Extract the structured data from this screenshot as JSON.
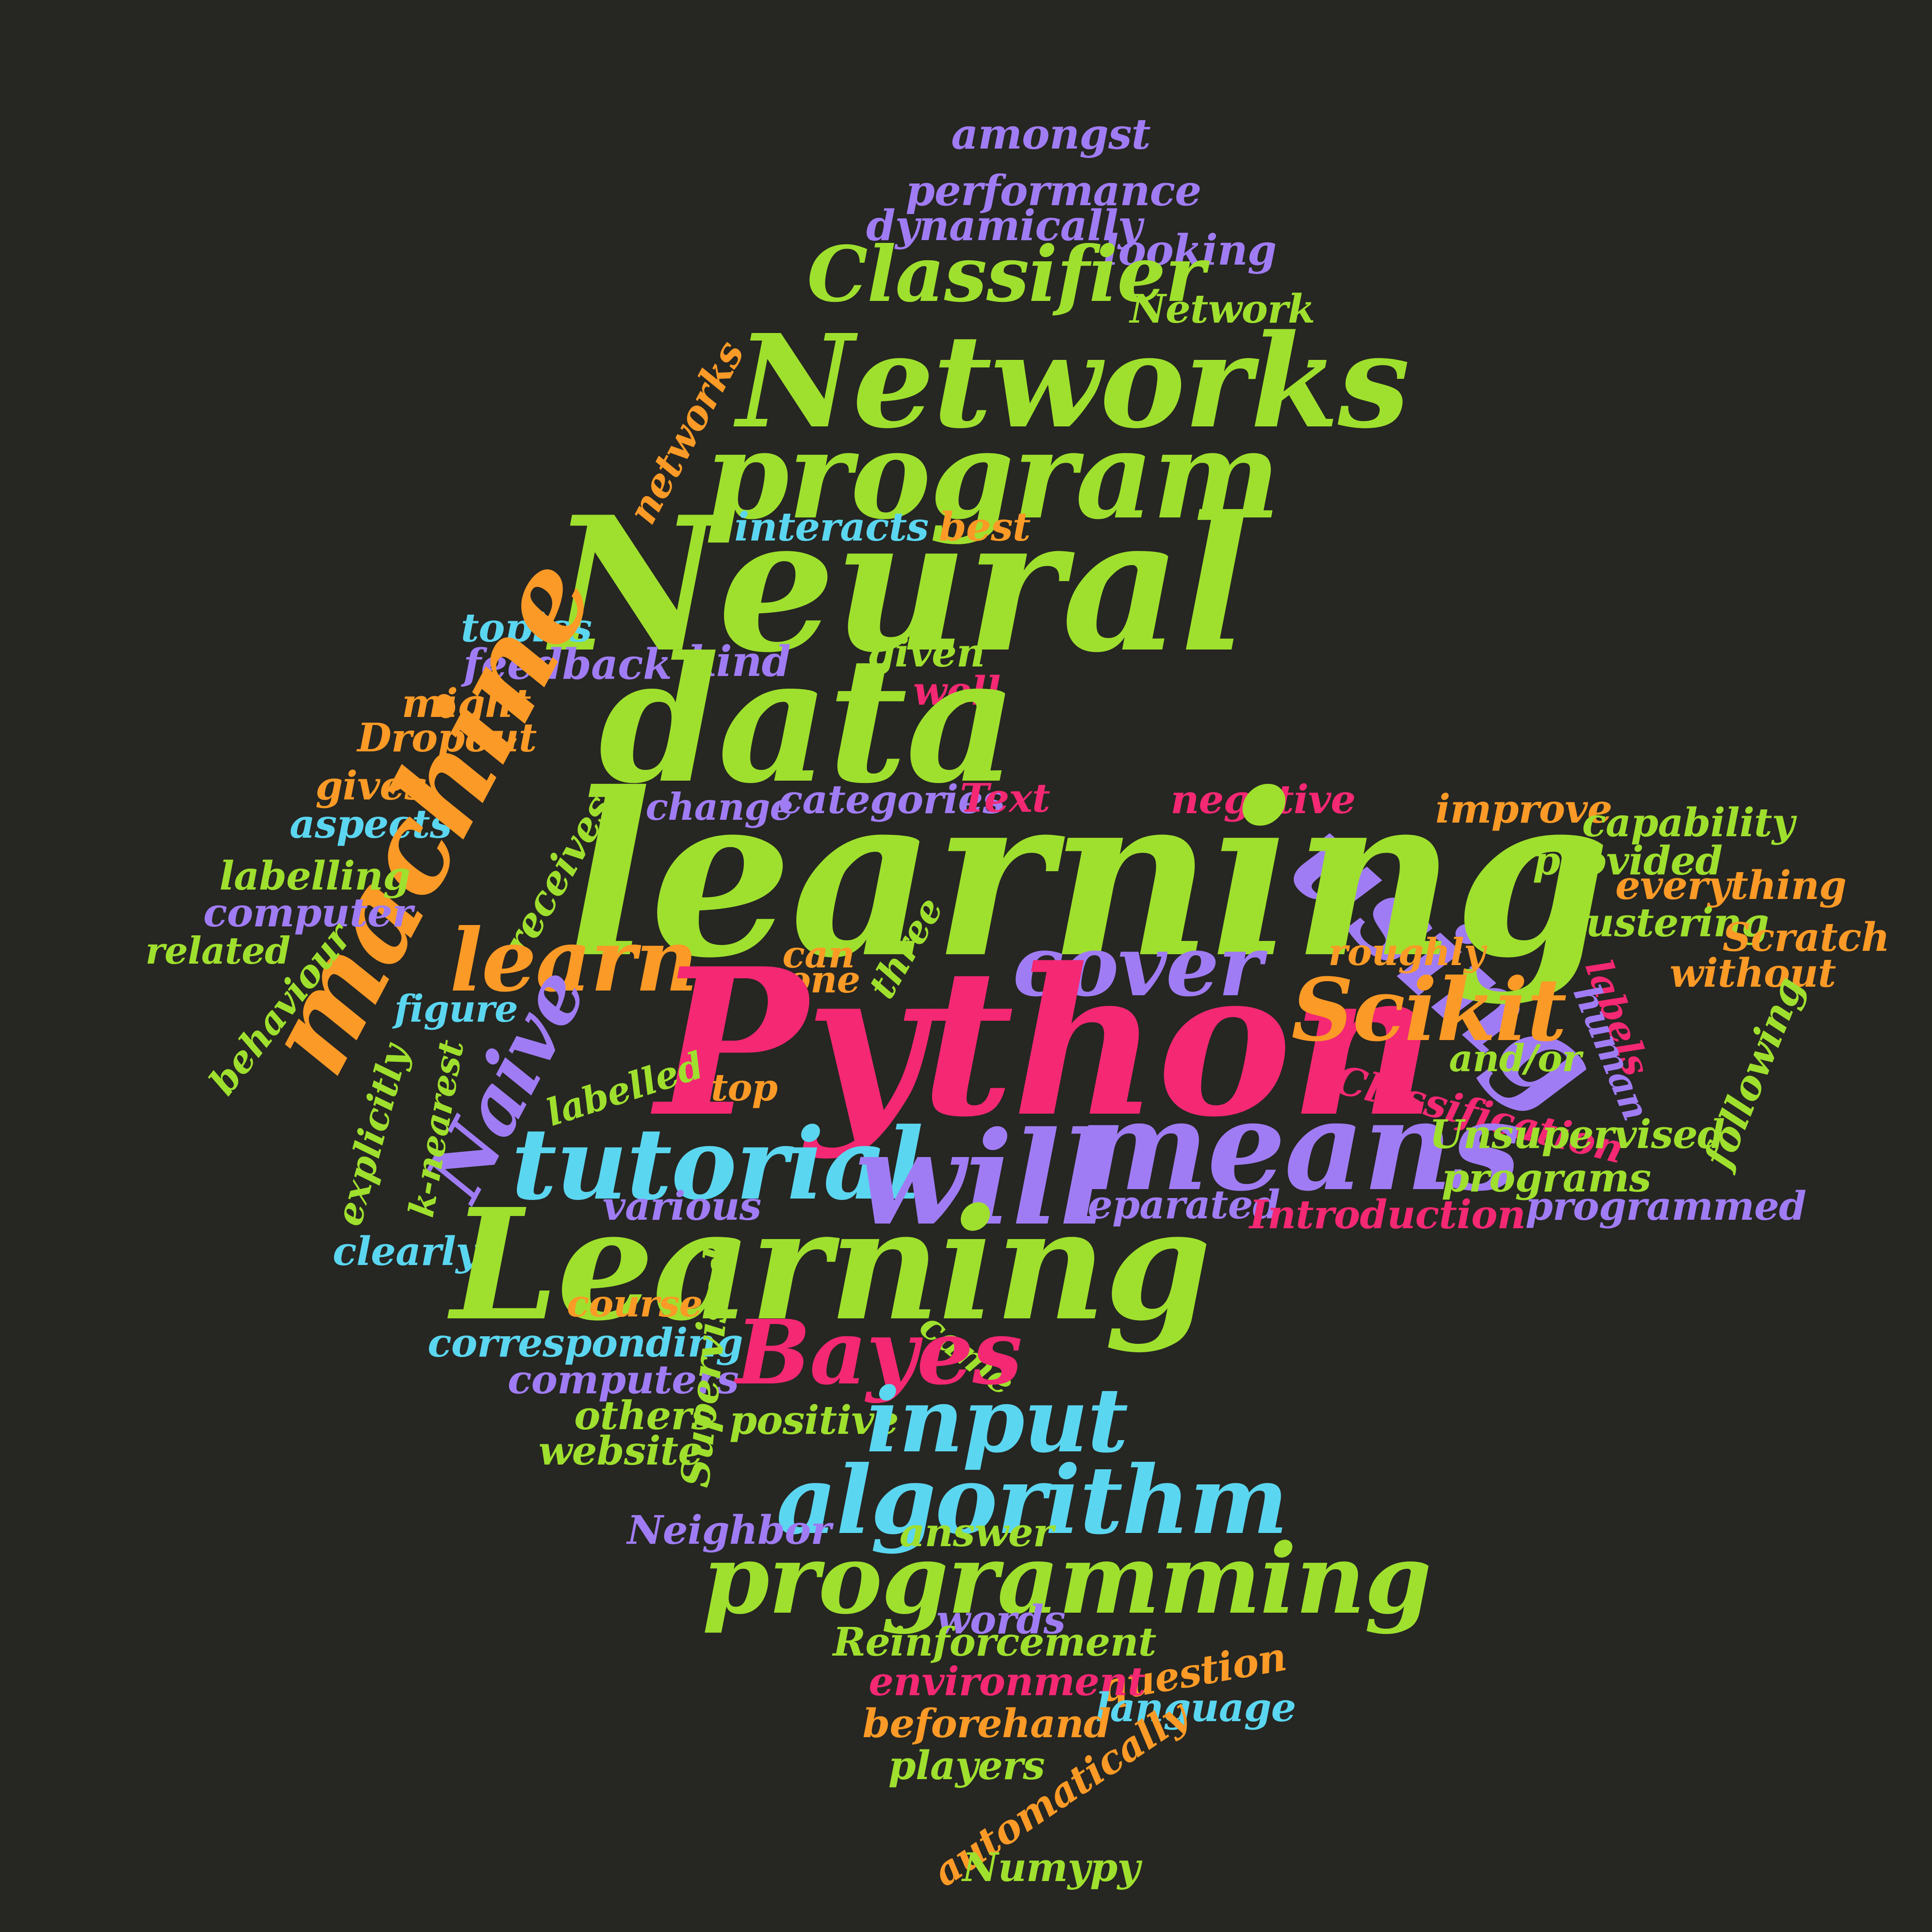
{
  "palette": {
    "background": "#262622",
    "green": "#9FE02E",
    "pink": "#F42873",
    "purple": "#A07CF4",
    "orange": "#FB9A26",
    "cyan": "#5BD6F0"
  },
  "words": [
    {
      "text": "amongst",
      "color": "purple"
    },
    {
      "text": "performance",
      "color": "purple"
    },
    {
      "text": "dynamically",
      "color": "purple"
    },
    {
      "text": "looking",
      "color": "purple"
    },
    {
      "text": "Classifier",
      "color": "green"
    },
    {
      "text": "Network",
      "color": "green"
    },
    {
      "text": "Networks",
      "color": "green"
    },
    {
      "text": "program",
      "color": "green"
    },
    {
      "text": "networks",
      "color": "orange"
    },
    {
      "text": "interacts",
      "color": "cyan"
    },
    {
      "text": "best",
      "color": "orange"
    },
    {
      "text": "Neural",
      "color": "green"
    },
    {
      "text": "topics",
      "color": "cyan"
    },
    {
      "text": "feedback",
      "color": "purple"
    },
    {
      "text": "kind",
      "color": "purple"
    },
    {
      "text": "given",
      "color": "green"
    },
    {
      "text": "well",
      "color": "pink"
    },
    {
      "text": "data",
      "color": "green"
    },
    {
      "text": "might",
      "color": "orange"
    },
    {
      "text": "Dropout",
      "color": "orange"
    },
    {
      "text": "gives",
      "color": "orange"
    },
    {
      "text": "aspects",
      "color": "cyan"
    },
    {
      "text": "machine",
      "color": "orange"
    },
    {
      "text": "change",
      "color": "purple"
    },
    {
      "text": "categories",
      "color": "purple"
    },
    {
      "text": "Text",
      "color": "pink"
    },
    {
      "text": "negative",
      "color": "pink"
    },
    {
      "text": "improve",
      "color": "orange"
    },
    {
      "text": "capability",
      "color": "green"
    },
    {
      "text": "using",
      "color": "purple"
    },
    {
      "text": "learning",
      "color": "green"
    },
    {
      "text": "provided",
      "color": "green"
    },
    {
      "text": "everything",
      "color": "orange"
    },
    {
      "text": "labelling",
      "color": "green"
    },
    {
      "text": "computer",
      "color": "purple"
    },
    {
      "text": "receives",
      "color": "green"
    },
    {
      "text": "clustering",
      "color": "green"
    },
    {
      "text": "Scratch",
      "color": "orange"
    },
    {
      "text": "related",
      "color": "green"
    },
    {
      "text": "learn",
      "color": "orange"
    },
    {
      "text": "cover",
      "color": "purple"
    },
    {
      "text": "roughly",
      "color": "orange"
    },
    {
      "text": "labels",
      "color": "pink"
    },
    {
      "text": "without",
      "color": "orange"
    },
    {
      "text": "can",
      "color": "orange"
    },
    {
      "text": "one",
      "color": "orange"
    },
    {
      "text": "three",
      "color": "green"
    },
    {
      "text": "behaviour",
      "color": "green"
    },
    {
      "text": "figure",
      "color": "cyan"
    },
    {
      "text": "Python",
      "color": "pink"
    },
    {
      "text": "Scikit",
      "color": "orange"
    },
    {
      "text": "human",
      "color": "purple"
    },
    {
      "text": "following",
      "color": "green"
    },
    {
      "text": "Naive",
      "color": "purple"
    },
    {
      "text": "labelled",
      "color": "green"
    },
    {
      "text": "and/or",
      "color": "green"
    },
    {
      "text": "Classification",
      "color": "pink"
    },
    {
      "text": "explicitly",
      "color": "green"
    },
    {
      "text": "k-nearest",
      "color": "green"
    },
    {
      "text": "top",
      "color": "orange"
    },
    {
      "text": "tutorial",
      "color": "cyan"
    },
    {
      "text": "will",
      "color": "purple"
    },
    {
      "text": "means",
      "color": "purple"
    },
    {
      "text": "Unsupervised",
      "color": "green"
    },
    {
      "text": "programs",
      "color": "green"
    },
    {
      "text": "various",
      "color": "purple"
    },
    {
      "text": "separated",
      "color": "purple"
    },
    {
      "text": "Introduction",
      "color": "pink"
    },
    {
      "text": "programmed",
      "color": "purple"
    },
    {
      "text": "clearly",
      "color": "cyan"
    },
    {
      "text": "Learning",
      "color": "green"
    },
    {
      "text": "course",
      "color": "orange"
    },
    {
      "text": "came",
      "color": "green"
    },
    {
      "text": "corresponding",
      "color": "cyan"
    },
    {
      "text": "Bayes",
      "color": "pink"
    },
    {
      "text": "computers",
      "color": "purple"
    },
    {
      "text": "Supervised",
      "color": "green"
    },
    {
      "text": "others",
      "color": "green"
    },
    {
      "text": "positive",
      "color": "green"
    },
    {
      "text": "input",
      "color": "cyan"
    },
    {
      "text": "website",
      "color": "green"
    },
    {
      "text": "algorithm",
      "color": "cyan"
    },
    {
      "text": "Neighbor",
      "color": "purple"
    },
    {
      "text": "answer",
      "color": "green"
    },
    {
      "text": "programming",
      "color": "green"
    },
    {
      "text": "words",
      "color": "purple"
    },
    {
      "text": "Reinforcement",
      "color": "green"
    },
    {
      "text": "question",
      "color": "orange"
    },
    {
      "text": "environment",
      "color": "pink"
    },
    {
      "text": "language",
      "color": "cyan"
    },
    {
      "text": "beforehand",
      "color": "orange"
    },
    {
      "text": "players",
      "color": "green"
    },
    {
      "text": "automatically",
      "color": "orange"
    },
    {
      "text": "Numypy",
      "color": "green"
    }
  ]
}
